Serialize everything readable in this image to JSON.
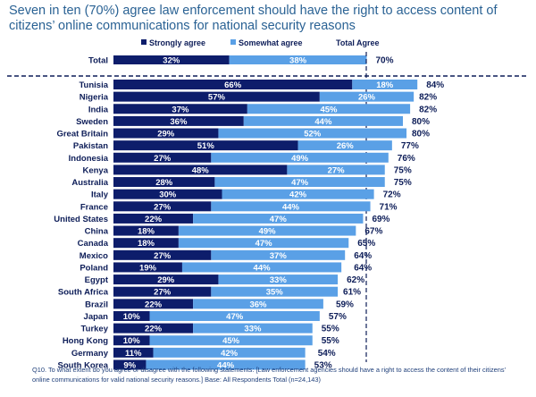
{
  "title": "Seven in ten (70%) agree law enforcement should have the right to access content of citizens’ online communications for national security reasons",
  "footnote": "Q10. To what extent do you agree or disagree with the following statements: [Law enforcement agencies should have a right to access the content of their citizens’ online communications for valid national security reasons.] Base: All Respondents Total  (n=24,143)",
  "colors": {
    "strongly_agree": "#0d1d6b",
    "somewhat_agree": "#5aa0e6",
    "label_text": "#0d1d58",
    "divider": "#0d1d58"
  },
  "legend": {
    "strongly": "Strongly agree",
    "somewhat": "Somewhat agree",
    "total": "Total Agree"
  },
  "chart_data": {
    "type": "bar",
    "orientation": "horizontal",
    "stacked": true,
    "xlim": [
      0,
      100
    ],
    "series": [
      {
        "name": "Strongly agree"
      },
      {
        "name": "Somewhat agree"
      }
    ],
    "total_row": {
      "category": "Total",
      "strongly": 32,
      "somewhat": 38,
      "total": 70
    },
    "rows": [
      {
        "category": "Tunisia",
        "strongly": 66,
        "somewhat": 18,
        "total": 84
      },
      {
        "category": "Nigeria",
        "strongly": 57,
        "somewhat": 26,
        "total": 82
      },
      {
        "category": "India",
        "strongly": 37,
        "somewhat": 45,
        "total": 82
      },
      {
        "category": "Sweden",
        "strongly": 36,
        "somewhat": 44,
        "total": 80
      },
      {
        "category": "Great Britain",
        "strongly": 29,
        "somewhat": 52,
        "total": 80
      },
      {
        "category": "Pakistan",
        "strongly": 51,
        "somewhat": 26,
        "total": 77
      },
      {
        "category": "Indonesia",
        "strongly": 27,
        "somewhat": 49,
        "total": 76
      },
      {
        "category": "Kenya",
        "strongly": 48,
        "somewhat": 27,
        "total": 75
      },
      {
        "category": "Australia",
        "strongly": 28,
        "somewhat": 47,
        "total": 75
      },
      {
        "category": "Italy",
        "strongly": 30,
        "somewhat": 42,
        "total": 72
      },
      {
        "category": "France",
        "strongly": 27,
        "somewhat": 44,
        "total": 71
      },
      {
        "category": "United States",
        "strongly": 22,
        "somewhat": 47,
        "total": 69
      },
      {
        "category": "China",
        "strongly": 18,
        "somewhat": 49,
        "total": 67
      },
      {
        "category": "Canada",
        "strongly": 18,
        "somewhat": 47,
        "total": 65
      },
      {
        "category": "Mexico",
        "strongly": 27,
        "somewhat": 37,
        "total": 64
      },
      {
        "category": "Poland",
        "strongly": 19,
        "somewhat": 44,
        "total": 64
      },
      {
        "category": "Egypt",
        "strongly": 29,
        "somewhat": 33,
        "total": 62
      },
      {
        "category": "South Africa",
        "strongly": 27,
        "somewhat": 35,
        "total": 61
      },
      {
        "category": "Brazil",
        "strongly": 22,
        "somewhat": 36,
        "total": 59
      },
      {
        "category": "Japan",
        "strongly": 10,
        "somewhat": 47,
        "total": 57
      },
      {
        "category": "Turkey",
        "strongly": 22,
        "somewhat": 33,
        "total": 55
      },
      {
        "category": "Hong Kong",
        "strongly": 10,
        "somewhat": 45,
        "total": 55
      },
      {
        "category": "Germany",
        "strongly": 11,
        "somewhat": 42,
        "total": 54
      },
      {
        "category": "South Korea",
        "strongly": 9,
        "somewhat": 44,
        "total": 53
      }
    ]
  }
}
